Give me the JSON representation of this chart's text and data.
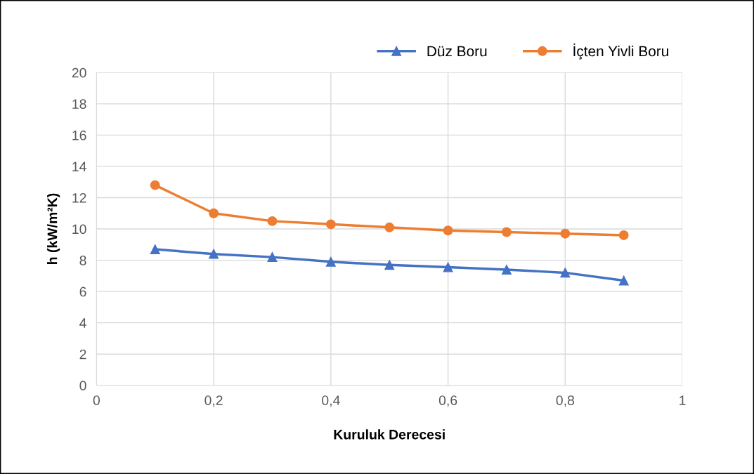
{
  "chart_data": {
    "type": "line",
    "xlabel": "Kuruluk Derecesi",
    "ylabel": "h (kW/m²K)",
    "xlim": [
      0,
      1
    ],
    "xticks": [
      0,
      {
        "value": 0.2,
        "label": "0,2"
      },
      {
        "value": 0.4,
        "label": "0,4"
      },
      {
        "value": 0.6,
        "label": "0,6"
      },
      {
        "value": 0.8,
        "label": "0,8"
      },
      1
    ],
    "ylim": [
      0,
      20
    ],
    "yticks": [
      0,
      2,
      4,
      6,
      8,
      10,
      12,
      14,
      16,
      18,
      20
    ],
    "grid": true,
    "legend": "top right",
    "x": [
      0.1,
      0.2,
      0.3,
      0.4,
      0.5,
      0.6,
      0.7,
      0.8,
      0.9
    ],
    "series": [
      {
        "name": "Düz Boru",
        "color": "#4472c4",
        "marker": "triangle",
        "values": [
          8.7,
          8.4,
          8.2,
          7.9,
          7.7,
          7.55,
          7.4,
          7.2,
          6.7
        ]
      },
      {
        "name": "İçten Yivli Boru",
        "color": "#ed7d31",
        "marker": "circle",
        "values": [
          12.8,
          11.0,
          10.5,
          10.3,
          10.1,
          9.9,
          9.8,
          9.7,
          9.6
        ]
      }
    ]
  }
}
